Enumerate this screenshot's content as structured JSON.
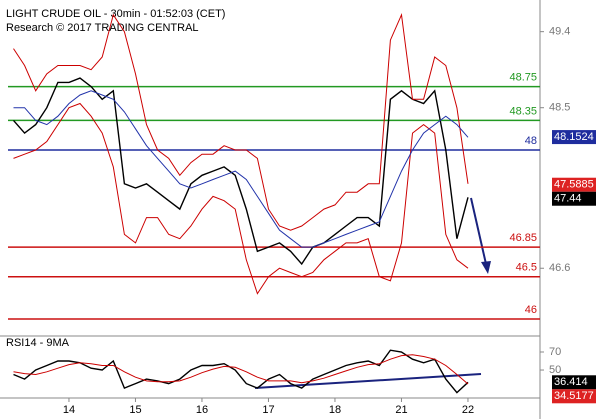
{
  "chart_data": [
    {
      "type": "line",
      "title": "LIGHT CRUDE OIL - 30min - 01:52:03 (CET)",
      "subtitle": "Research © 2017 TRADING CENTRAL",
      "ylim": [
        45.81,
        49.68
      ],
      "yticks": [
        49.4,
        48.5,
        46.6
      ],
      "series": [
        {
          "color": "#000000",
          "values": [
            48.35,
            48.2,
            48.3,
            48.5,
            48.8,
            48.8,
            48.85,
            48.75,
            48.6,
            48.7,
            47.6,
            47.55,
            47.6,
            47.5,
            47.4,
            47.3,
            47.6,
            47.7,
            47.75,
            47.8,
            47.7,
            47.3,
            46.8,
            46.85,
            46.9,
            46.8,
            46.65,
            46.85,
            46.9,
            47.0,
            47.1,
            47.2,
            47.2,
            47.1,
            48.6,
            48.7,
            48.6,
            48.55,
            48.7,
            48.0,
            46.95,
            47.44,
            null,
            null,
            null,
            null,
            null,
            null
          ]
        },
        {
          "color": "#cc0000",
          "values": [
            49.2,
            49.0,
            48.7,
            48.9,
            49.0,
            49.0,
            49.0,
            48.95,
            49.1,
            49.6,
            49.4,
            48.9,
            48.3,
            48.0,
            47.9,
            47.7,
            47.85,
            47.95,
            47.95,
            48.05,
            48.0,
            48.0,
            47.9,
            47.3,
            47.1,
            47.05,
            47.1,
            47.2,
            47.3,
            47.35,
            47.5,
            47.5,
            47.6,
            47.6,
            49.3,
            49.6,
            48.6,
            48.6,
            49.1,
            49.0,
            48.5,
            47.6,
            null,
            null,
            null,
            null,
            null,
            null
          ]
        },
        {
          "color": "#cc0000",
          "values": [
            47.9,
            47.95,
            48.0,
            48.1,
            48.3,
            48.5,
            48.55,
            48.4,
            48.2,
            47.8,
            47.0,
            46.9,
            47.2,
            47.2,
            47.0,
            46.95,
            47.1,
            47.3,
            47.45,
            47.4,
            47.3,
            46.7,
            46.3,
            46.5,
            46.6,
            46.55,
            46.5,
            46.55,
            46.7,
            46.8,
            46.9,
            46.9,
            46.95,
            46.5,
            46.45,
            46.9,
            48.2,
            48.3,
            48.2,
            47.0,
            46.7,
            46.6,
            null,
            null,
            null,
            null,
            null,
            null
          ]
        },
        {
          "color": "#2233aa",
          "values": [
            48.5,
            48.5,
            48.35,
            48.3,
            48.4,
            48.55,
            48.65,
            48.7,
            48.65,
            48.6,
            48.45,
            48.25,
            48.05,
            47.9,
            47.75,
            47.6,
            47.55,
            47.6,
            47.65,
            47.7,
            47.75,
            47.65,
            47.45,
            47.25,
            47.05,
            46.95,
            46.85,
            46.85,
            46.9,
            46.95,
            47.0,
            47.05,
            47.1,
            47.15,
            47.45,
            47.75,
            48.0,
            48.2,
            48.3,
            48.4,
            48.3,
            48.15,
            null,
            null,
            null,
            null,
            null,
            null
          ]
        }
      ],
      "levels": [
        {
          "value": 48.75,
          "color": "#229922"
        },
        {
          "value": 48.35,
          "color": "#229922"
        },
        {
          "value": 48,
          "color": "#1f2d9e"
        },
        {
          "value": 46.85,
          "color": "#cc1111"
        },
        {
          "value": 46.5,
          "color": "#cc1111"
        },
        {
          "value": 46,
          "color": "#cc1111"
        }
      ],
      "price_labels": [
        {
          "value": 48.1524,
          "color": "#1f2d9e"
        },
        {
          "value": 47.5885,
          "color": "#dd2222"
        },
        {
          "value": 47.44,
          "color": "#000000"
        }
      ]
    },
    {
      "type": "line",
      "title": "RSI14 - 9MA",
      "ylim": [
        19,
        85.5
      ],
      "yticks": [
        70,
        50
      ],
      "categories": [
        null,
        null,
        null,
        null,
        null,
        "14",
        null,
        null,
        null,
        null,
        null,
        "15",
        null,
        null,
        null,
        null,
        null,
        "16",
        null,
        null,
        null,
        null,
        null,
        "17",
        null,
        null,
        null,
        null,
        null,
        "18",
        null,
        null,
        null,
        null,
        null,
        "21",
        null,
        null,
        null,
        null,
        null,
        "22",
        null,
        null,
        null,
        null,
        null,
        null
      ],
      "series": [
        {
          "color": "#000000",
          "values": [
            45,
            40,
            50,
            55,
            60,
            60,
            58,
            52,
            50,
            60,
            30,
            35,
            40,
            38,
            35,
            40,
            50,
            55,
            55,
            57,
            50,
            35,
            30,
            40,
            45,
            35,
            30,
            40,
            45,
            50,
            55,
            58,
            60,
            55,
            72,
            70,
            62,
            58,
            62,
            40,
            25,
            36.414,
            null,
            null,
            null,
            null,
            null,
            null
          ]
        },
        {
          "color": "#cc0000",
          "values": [
            48,
            46,
            45,
            48,
            52,
            56,
            58,
            57,
            55,
            55,
            48,
            42,
            38,
            37,
            37,
            38,
            42,
            47,
            51,
            54,
            53,
            48,
            42,
            38,
            38,
            38,
            36,
            38,
            41,
            45,
            49,
            53,
            56,
            57,
            62,
            66,
            67,
            65,
            62,
            55,
            45,
            34.5177,
            null,
            null,
            null,
            null,
            null,
            null
          ]
        }
      ],
      "price_labels": [
        {
          "value": 36.414,
          "color": "#000000"
        },
        {
          "value": 34.5177,
          "color": "#dd2222"
        }
      ]
    }
  ]
}
